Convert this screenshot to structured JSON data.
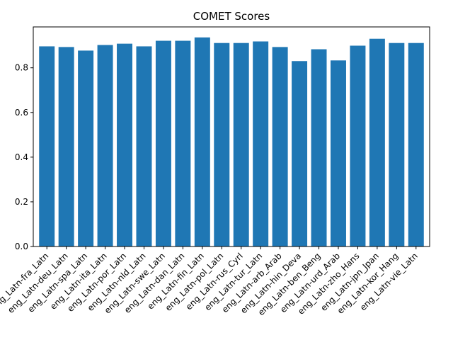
{
  "chart_data": {
    "type": "bar",
    "title": "COMET Scores",
    "xlabel": "",
    "ylabel": "",
    "ylim": [
      0,
      0.983
    ],
    "yticks": [
      0.0,
      0.2,
      0.4,
      0.6,
      0.8
    ],
    "ytick_labels": [
      "0.0",
      "0.2",
      "0.4",
      "0.6",
      "0.8"
    ],
    "bar_color": "#1f77b4",
    "grid": false,
    "categories": [
      "eng_Latn-fra_Latn",
      "eng_Latn-deu_Latn",
      "eng_Latn-spa_Latn",
      "eng_Latn-ita_Latn",
      "eng_Latn-por_Latn",
      "eng_Latn-nld_Latn",
      "eng_Latn-swe_Latn",
      "eng_Latn-dan_Latn",
      "eng_Latn-fin_Latn",
      "eng_Latn-pol_Latn",
      "eng_Latn-rus_Cyrl",
      "eng_Latn-tur_Latn",
      "eng_Latn-arb_Arab",
      "eng_Latn-hin_Deva",
      "eng_Latn-ben_Beng",
      "eng_Latn-urd_Arab",
      "eng_Latn-zho_Hans",
      "eng_Latn-jpn_Jpan",
      "eng_Latn-kor_Hang",
      "eng_Latn-vie_Latn"
    ],
    "values": [
      0.896,
      0.893,
      0.877,
      0.902,
      0.908,
      0.896,
      0.921,
      0.921,
      0.936,
      0.911,
      0.911,
      0.918,
      0.893,
      0.83,
      0.883,
      0.833,
      0.899,
      0.93,
      0.911,
      0.911
    ]
  }
}
